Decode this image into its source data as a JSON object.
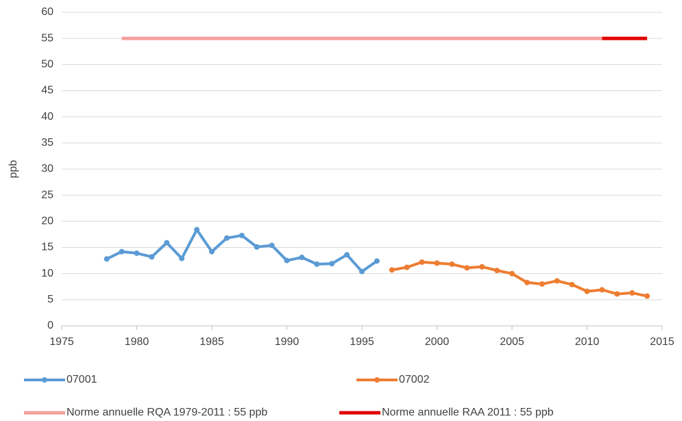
{
  "chart_data": {
    "type": "line",
    "y_label": "ppb",
    "xlim": [
      1975,
      2015
    ],
    "xticks": [
      1975,
      1980,
      1985,
      1990,
      1995,
      2000,
      2005,
      2010,
      2015
    ],
    "ylim": [
      0,
      60
    ],
    "yticks": [
      0,
      5,
      10,
      15,
      20,
      25,
      30,
      35,
      40,
      45,
      50,
      55,
      60
    ],
    "grid": true,
    "legend": "bottom",
    "series": [
      {
        "name": "07001",
        "color": "#5b9bd5",
        "marker": true,
        "x": [
          1978,
          1979,
          1980,
          1981,
          1982,
          1983,
          1984,
          1985,
          1986,
          1987,
          1988,
          1989,
          1990,
          1991,
          1992,
          1993,
          1994,
          1995,
          1996
        ],
        "values": [
          12.8,
          14.2,
          13.9,
          13.2,
          15.9,
          12.9,
          18.4,
          14.2,
          16.8,
          17.3,
          15.1,
          15.4,
          12.5,
          13.1,
          11.8,
          11.9,
          13.6,
          10.4,
          12.4
        ]
      },
      {
        "name": "07002",
        "color": "#ed7d31",
        "marker": true,
        "x": [
          1997,
          1998,
          1999,
          2000,
          2001,
          2002,
          2003,
          2004,
          2005,
          2006,
          2007,
          2008,
          2009,
          2010,
          2011,
          2012,
          2013,
          2014
        ],
        "values": [
          10.7,
          11.2,
          12.2,
          12.0,
          11.8,
          11.1,
          11.3,
          10.6,
          10.0,
          8.3,
          8.0,
          8.6,
          7.9,
          6.6,
          6.9,
          6.1,
          6.3,
          5.7
        ]
      },
      {
        "name": "Norme annuelle RQA 1979-2011 : 55 ppb",
        "color": "#f4a09c",
        "marker": false,
        "x": [
          1979,
          2011
        ],
        "values": [
          55,
          55
        ]
      },
      {
        "name": "Norme annuelle RAA 2011 : 55 ppb",
        "color": "#e00000",
        "marker": false,
        "x": [
          2011,
          2014
        ],
        "values": [
          55,
          55
        ]
      }
    ]
  }
}
